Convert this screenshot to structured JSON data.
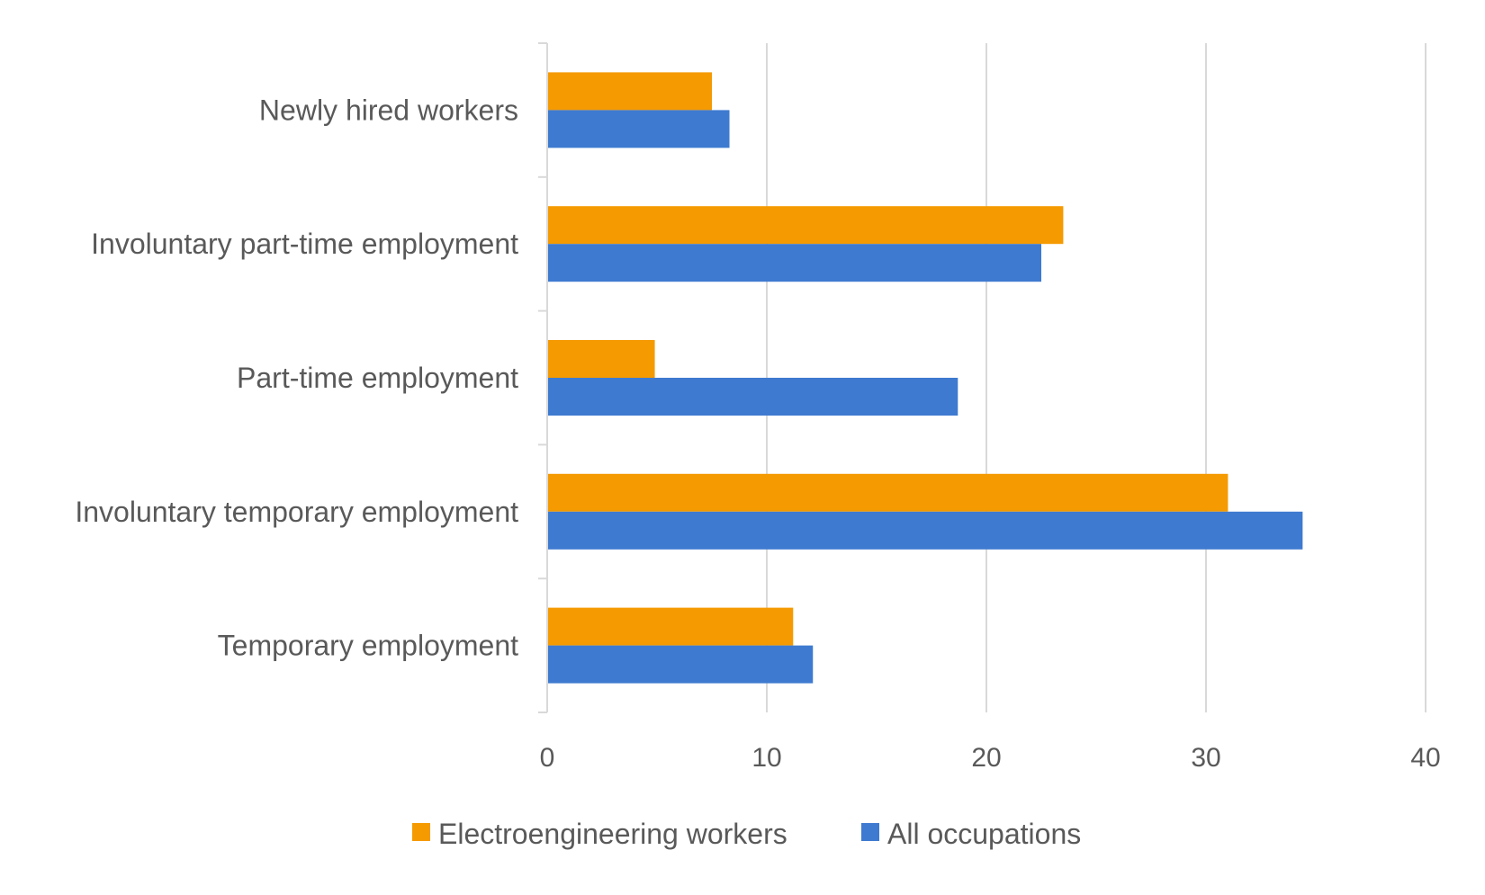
{
  "colors": {
    "electroengineering": "#F59A00",
    "all_occupations": "#3E7AD0",
    "gridline": "#D9D9D9",
    "axis": "#D9D9D9",
    "text": "#595959"
  },
  "chart_data": {
    "type": "bar",
    "orientation": "horizontal",
    "categories": [
      "Newly hired workers",
      "Involuntary part-time employment",
      "Part-time employment",
      "Involuntary temporary employment",
      "Temporary employment"
    ],
    "series": [
      {
        "name": "Electroengineering workers",
        "color": "#F59A00",
        "values": [
          7.5,
          23.5,
          4.9,
          31.0,
          11.2
        ]
      },
      {
        "name": "All occupations",
        "color": "#3E7AD0",
        "values": [
          8.3,
          22.5,
          18.7,
          34.4,
          12.1
        ]
      }
    ],
    "xlim": [
      0,
      40
    ],
    "xticks": [
      "0",
      "10",
      "20",
      "30",
      "40"
    ],
    "xlabel": "",
    "ylabel": "",
    "title": "",
    "grid": "vertical",
    "legend": "bottom"
  }
}
